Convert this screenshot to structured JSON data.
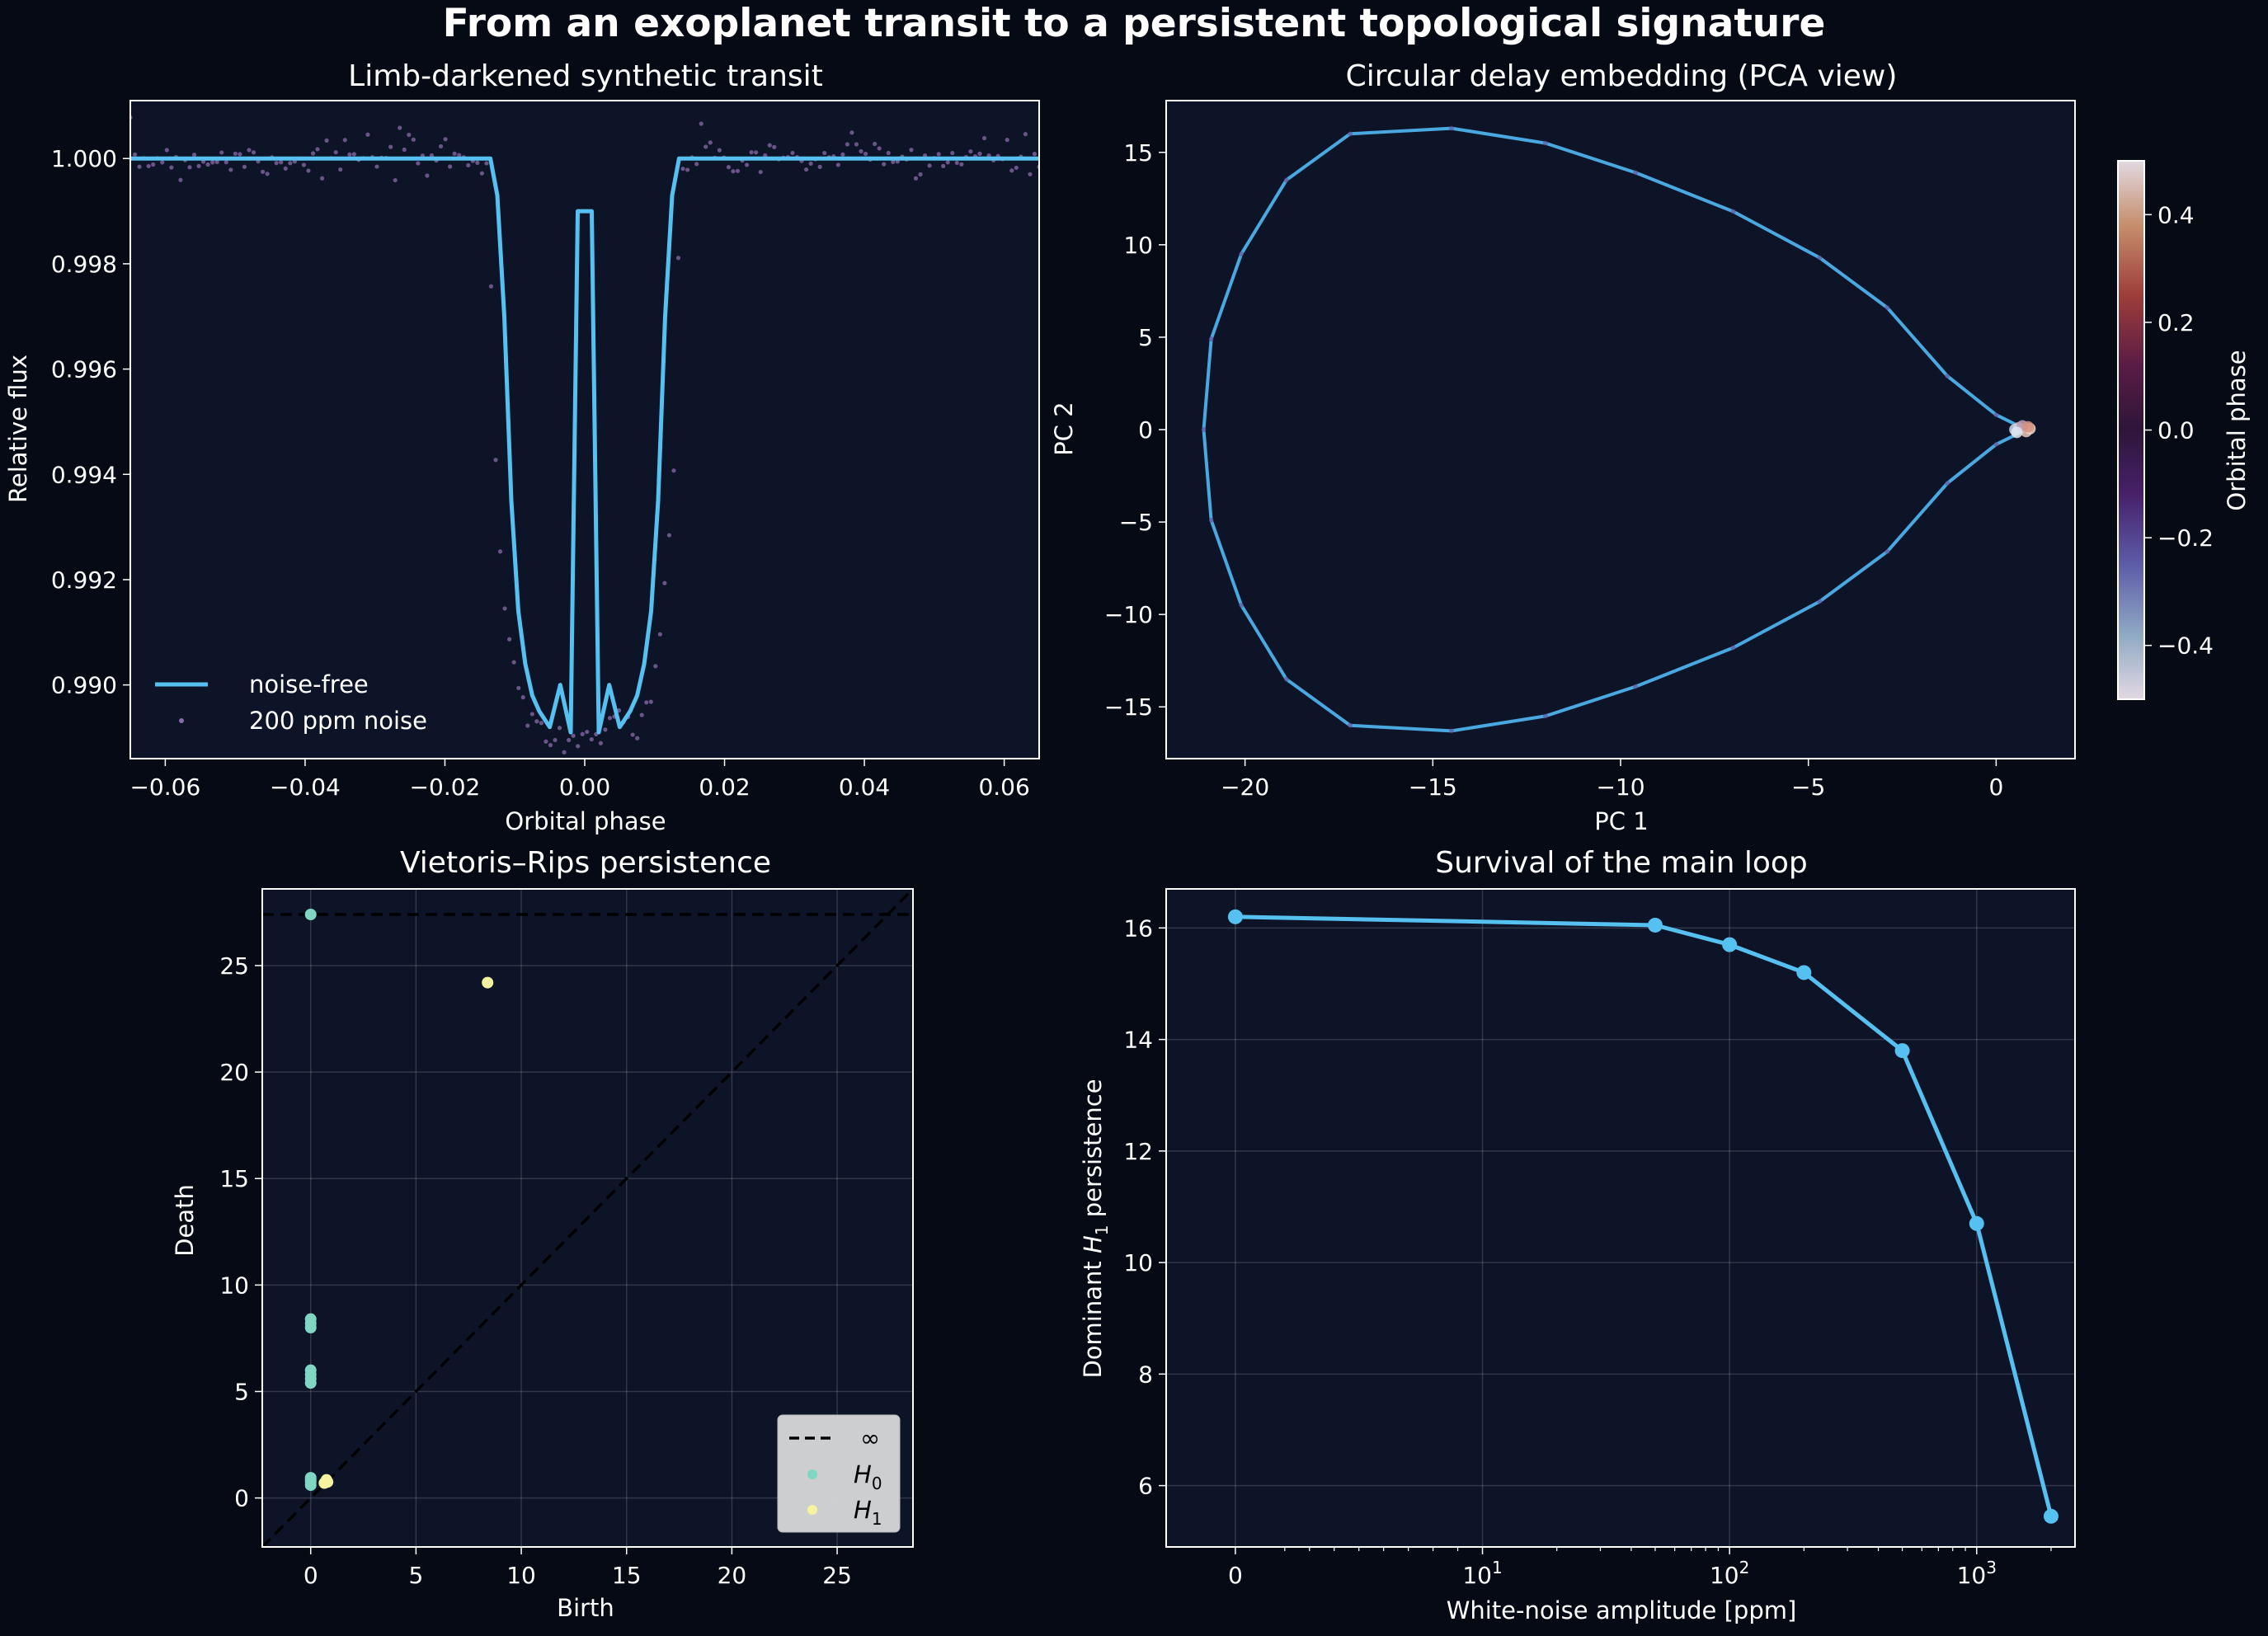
{
  "figure": {
    "suptitle": "From an exoplanet transit to a persistent topological signature",
    "colors": {
      "background": "#050a14",
      "axes_bg": "#0e1428",
      "line": "#56c1f0",
      "text": "#ffffff"
    }
  },
  "chart_data": [
    {
      "type": "line",
      "title": "Limb-darkened synthetic transit",
      "xlabel": "Orbital phase",
      "ylabel": "Relative flux",
      "xlim": [
        -0.065,
        0.065
      ],
      "ylim": [
        0.9886,
        1.0011
      ],
      "xticks": [
        -0.06,
        -0.04,
        -0.02,
        0.0,
        0.02,
        0.04,
        0.06
      ],
      "xtick_labels": [
        "−0.06",
        "−0.04",
        "−0.02",
        "0.00",
        "0.02",
        "0.04",
        "0.06"
      ],
      "yticks": [
        0.99,
        0.992,
        0.994,
        0.996,
        0.998,
        1.0
      ],
      "ytick_labels": [
        "0.990",
        "0.992",
        "0.994",
        "0.996",
        "0.998",
        "1.000"
      ],
      "legend": {
        "position": "lower-left",
        "entries": [
          "noise-free",
          "200 ppm noise"
        ]
      },
      "series": [
        {
          "name": "noise-free",
          "x": [
            -0.065,
            -0.0135,
            -0.0125,
            -0.0115,
            -0.0105,
            -0.0095,
            -0.0085,
            -0.0075,
            -0.0065,
            -0.005,
            -0.0035,
            -0.002,
            -0.001,
            0.0,
            0.001,
            0.002,
            0.0035,
            0.005,
            0.0065,
            0.0075,
            0.0085,
            0.0095,
            0.0105,
            0.0115,
            0.0125,
            0.0135,
            0.065
          ],
          "y": [
            1.0,
            1.0,
            0.9993,
            0.997,
            0.9935,
            0.9914,
            0.9904,
            0.9898,
            0.9895,
            0.9892,
            0.99,
            0.9891,
            0.999,
            0.999,
            0.999,
            0.9891,
            0.99,
            0.9892,
            0.9895,
            0.9898,
            0.9904,
            0.9914,
            0.9935,
            0.997,
            0.9993,
            1.0,
            1.0
          ]
        },
        {
          "name": "200 ppm noise",
          "type": "scatter",
          "n_points": 200,
          "sigma": 0.0002
        }
      ]
    },
    {
      "type": "line",
      "title": "Circular delay embedding (PCA view)",
      "xlabel": "PC 1",
      "ylabel": "PC 2",
      "xlim": [
        -22.1,
        2.1
      ],
      "ylim": [
        -17.8,
        17.8
      ],
      "xticks": [
        -20,
        -15,
        -10,
        -5,
        0
      ],
      "xtick_labels": [
        "−20",
        "−15",
        "−10",
        "−5",
        "0"
      ],
      "yticks": [
        -15,
        -10,
        -5,
        0,
        5,
        10,
        15
      ],
      "ytick_labels": [
        "−15",
        "−10",
        "−5",
        "0",
        "5",
        "10",
        "15"
      ],
      "colorbar": {
        "label": "Orbital phase",
        "range": [
          -0.5,
          0.5
        ],
        "ticks": [
          "−0.4",
          "−0.2",
          "0.0",
          "0.2",
          "0.4"
        ],
        "colormap": "twilight"
      },
      "series": [
        {
          "name": "embedding",
          "x": [
            0.8,
            0.0,
            -1.3,
            -2.9,
            -4.7,
            -7.0,
            -9.6,
            -12.0,
            -14.5,
            -17.2,
            -18.9,
            -20.1,
            -20.9,
            -21.1,
            -20.9,
            -20.1,
            -18.9,
            -17.2,
            -14.5,
            -12.0,
            -9.6,
            -7.0,
            -4.7,
            -2.9,
            -1.3,
            0.0,
            0.8
          ],
          "y": [
            0.0,
            0.8,
            2.9,
            6.6,
            9.3,
            11.8,
            13.9,
            15.5,
            16.3,
            16.0,
            13.5,
            9.5,
            4.9,
            0.0,
            -4.9,
            -9.5,
            -13.5,
            -16.0,
            -16.3,
            -15.5,
            -13.9,
            -11.8,
            -9.3,
            -6.6,
            -2.9,
            -0.8,
            0.0
          ]
        }
      ]
    },
    {
      "type": "scatter",
      "title": "Vietoris–Rips persistence",
      "xlabel": "Birth",
      "ylabel": "Death",
      "xlim": [
        -2.3,
        28.6
      ],
      "ylim": [
        -2.3,
        28.6
      ],
      "xticks": [
        0,
        5,
        10,
        15,
        20,
        25
      ],
      "xtick_labels": [
        "0",
        "5",
        "10",
        "15",
        "20",
        "25"
      ],
      "yticks": [
        0,
        5,
        10,
        15,
        20,
        25
      ],
      "ytick_labels": [
        "0",
        "5",
        "10",
        "15",
        "20",
        "25"
      ],
      "infinity_level": 27.4,
      "legend": {
        "position": "lower-right",
        "entries": [
          "∞",
          "H0",
          "H1"
        ]
      },
      "series": [
        {
          "name": "H0",
          "x": [
            0,
            0,
            0,
            0,
            0,
            0,
            0,
            0,
            0,
            0,
            0,
            0
          ],
          "y": [
            27.4,
            8.4,
            8.2,
            8.0,
            6.0,
            5.8,
            5.6,
            5.4,
            0.95,
            0.85,
            0.75,
            0.6
          ]
        },
        {
          "name": "H1",
          "x": [
            8.4,
            0.65,
            0.75,
            0.8
          ],
          "y": [
            24.2,
            0.7,
            0.85,
            0.75
          ]
        }
      ]
    },
    {
      "type": "line",
      "title": "Survival of the main loop",
      "xlabel": "White-noise amplitude [ppm]",
      "ylabel": "Dominant H1 persistence",
      "xscale": "symlog",
      "linthresh": 10,
      "xlim_ppm": [
        -2.8,
        2500
      ],
      "ylim": [
        4.9,
        16.7
      ],
      "xtick_labels": [
        "0",
        "10¹",
        "10²",
        "10³"
      ],
      "xticks": [
        0,
        10,
        100,
        1000
      ],
      "yticks": [
        6,
        8,
        10,
        12,
        14,
        16
      ],
      "ytick_labels": [
        "6",
        "8",
        "10",
        "12",
        "14",
        "16"
      ],
      "series": [
        {
          "name": "dominant H1",
          "x": [
            0,
            50,
            100,
            200,
            500,
            1000,
            2000
          ],
          "y": [
            16.2,
            16.05,
            15.7,
            15.2,
            13.8,
            10.7,
            5.45
          ]
        }
      ]
    }
  ]
}
